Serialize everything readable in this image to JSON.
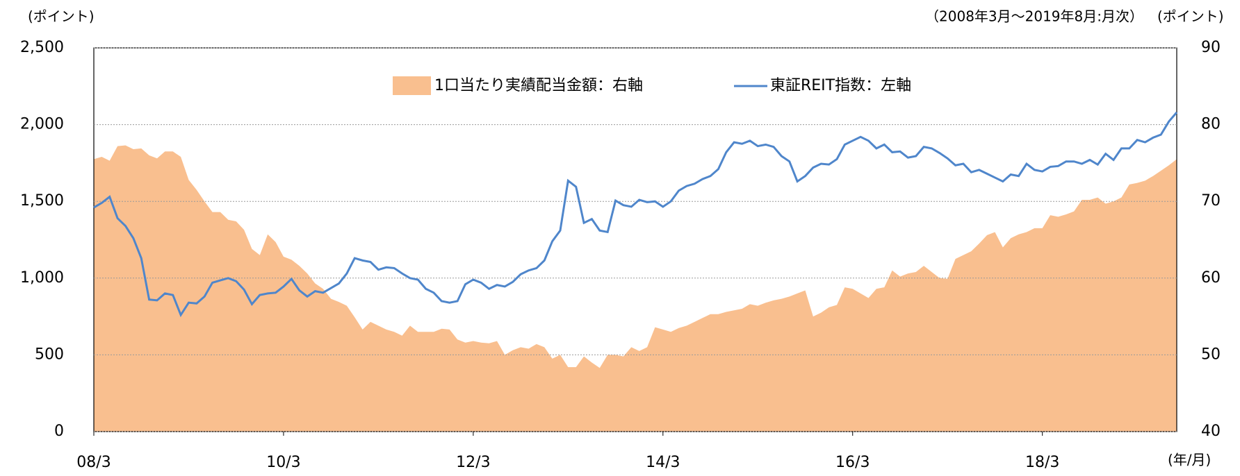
{
  "chart_data": {
    "type": "combo",
    "period_note": "（2008年3月～2019年8月:月次）",
    "y_unit_left": "(ポイント)",
    "y_unit_right": "(ポイント)",
    "x_unit": "(年/月)",
    "categories": [
      "08/3",
      null,
      null,
      null,
      null,
      null,
      null,
      null,
      null,
      null,
      null,
      null,
      null,
      null,
      null,
      null,
      null,
      null,
      null,
      null,
      null,
      null,
      null,
      null,
      "10/3",
      null,
      null,
      null,
      null,
      null,
      null,
      null,
      null,
      null,
      null,
      null,
      null,
      null,
      null,
      null,
      null,
      null,
      null,
      null,
      null,
      null,
      null,
      null,
      "12/3",
      null,
      null,
      null,
      null,
      null,
      null,
      null,
      null,
      null,
      null,
      null,
      null,
      null,
      null,
      null,
      null,
      null,
      null,
      null,
      null,
      null,
      null,
      null,
      "14/3",
      null,
      null,
      null,
      null,
      null,
      null,
      null,
      null,
      null,
      null,
      null,
      null,
      null,
      null,
      null,
      null,
      null,
      null,
      null,
      null,
      null,
      null,
      null,
      "16/3",
      null,
      null,
      null,
      null,
      null,
      null,
      null,
      null,
      null,
      null,
      null,
      null,
      null,
      null,
      null,
      null,
      null,
      null,
      null,
      null,
      null,
      null,
      null,
      "18/3",
      null,
      null,
      null,
      null,
      null,
      null,
      null,
      null,
      null,
      null,
      null,
      null,
      null,
      null,
      null,
      null,
      null
    ],
    "series": [
      {
        "name": "1口当たり実績配当金額：右軸",
        "type": "area",
        "axis": "y2",
        "color": "#f9bf8f",
        "values": [
          75.5,
          75.8,
          75.3,
          77.2,
          77.3,
          76.8,
          76.9,
          76.0,
          75.6,
          76.5,
          76.5,
          75.8,
          72.8,
          71.5,
          70.0,
          68.6,
          68.6,
          67.6,
          67.4,
          66.3,
          63.8,
          63.0,
          65.7,
          64.7,
          62.8,
          62.4,
          61.6,
          60.6,
          59.3,
          58.6,
          57.3,
          56.9,
          56.4,
          54.9,
          53.3,
          54.3,
          53.8,
          53.3,
          53.0,
          52.5,
          53.8,
          53.0,
          53.0,
          53.0,
          53.4,
          53.3,
          52.0,
          51.6,
          51.8,
          51.6,
          51.5,
          51.8,
          50.0,
          50.6,
          51.0,
          50.8,
          51.4,
          51.0,
          49.5,
          50.0,
          48.4,
          48.4,
          49.8,
          49.0,
          48.3,
          50.0,
          50.0,
          49.8,
          51.0,
          50.5,
          51.0,
          53.6,
          53.3,
          53.0,
          53.5,
          53.8,
          54.3,
          54.8,
          55.3,
          55.3,
          55.6,
          55.8,
          56.0,
          56.6,
          56.4,
          56.8,
          57.1,
          57.3,
          57.6,
          58.0,
          58.4,
          55.0,
          55.5,
          56.2,
          56.5,
          58.8,
          58.6,
          58.0,
          57.4,
          58.6,
          58.8,
          61.0,
          60.2,
          60.6,
          60.8,
          61.6,
          60.8,
          60.0,
          59.9,
          62.5,
          63.0,
          63.5,
          64.5,
          65.6,
          66.0,
          64.0,
          65.2,
          65.7,
          66.0,
          66.5,
          66.5,
          68.2,
          68.0,
          68.3,
          68.7,
          70.2,
          70.2,
          70.5,
          69.7,
          70.0,
          70.5,
          72.2,
          72.4,
          72.7,
          73.3,
          74.0,
          74.7,
          75.5
        ]
      },
      {
        "name": "東証REIT指数：左軸",
        "type": "line",
        "axis": "y",
        "color": "#4f86cb",
        "values": [
          1460,
          1490,
          1530,
          1390,
          1340,
          1260,
          1130,
          860,
          855,
          900,
          890,
          760,
          840,
          835,
          880,
          970,
          985,
          1000,
          980,
          925,
          830,
          890,
          900,
          905,
          945,
          995,
          920,
          880,
          915,
          905,
          935,
          965,
          1030,
          1130,
          1115,
          1105,
          1055,
          1070,
          1065,
          1030,
          1000,
          990,
          930,
          905,
          850,
          840,
          850,
          960,
          990,
          970,
          930,
          955,
          945,
          975,
          1025,
          1050,
          1065,
          1115,
          1240,
          1310,
          1635,
          1595,
          1360,
          1385,
          1310,
          1300,
          1505,
          1475,
          1465,
          1510,
          1495,
          1500,
          1465,
          1500,
          1570,
          1600,
          1615,
          1645,
          1665,
          1710,
          1820,
          1885,
          1875,
          1895,
          1860,
          1870,
          1855,
          1795,
          1760,
          1630,
          1665,
          1720,
          1745,
          1740,
          1775,
          1870,
          1895,
          1920,
          1895,
          1845,
          1870,
          1820,
          1825,
          1785,
          1795,
          1855,
          1845,
          1815,
          1780,
          1735,
          1745,
          1690,
          1705,
          1680,
          1655,
          1630,
          1675,
          1665,
          1745,
          1705,
          1695,
          1725,
          1730,
          1760,
          1760,
          1745,
          1770,
          1740,
          1810,
          1770,
          1845,
          1845,
          1900,
          1885,
          1915,
          1935,
          2020,
          2080
        ]
      }
    ],
    "ylim": [
      0,
      2500
    ],
    "yticks": [
      0,
      500,
      {
        "value": 1000,
        "label": "1,000"
      },
      {
        "value": 1500,
        "label": "1,500"
      },
      {
        "value": 2000,
        "label": "2,000"
      },
      {
        "value": 2500,
        "label": "2,500"
      }
    ],
    "y2lim": [
      40,
      90
    ],
    "y2ticks": [
      40,
      50,
      60,
      70,
      80,
      90
    ],
    "grid": true
  }
}
